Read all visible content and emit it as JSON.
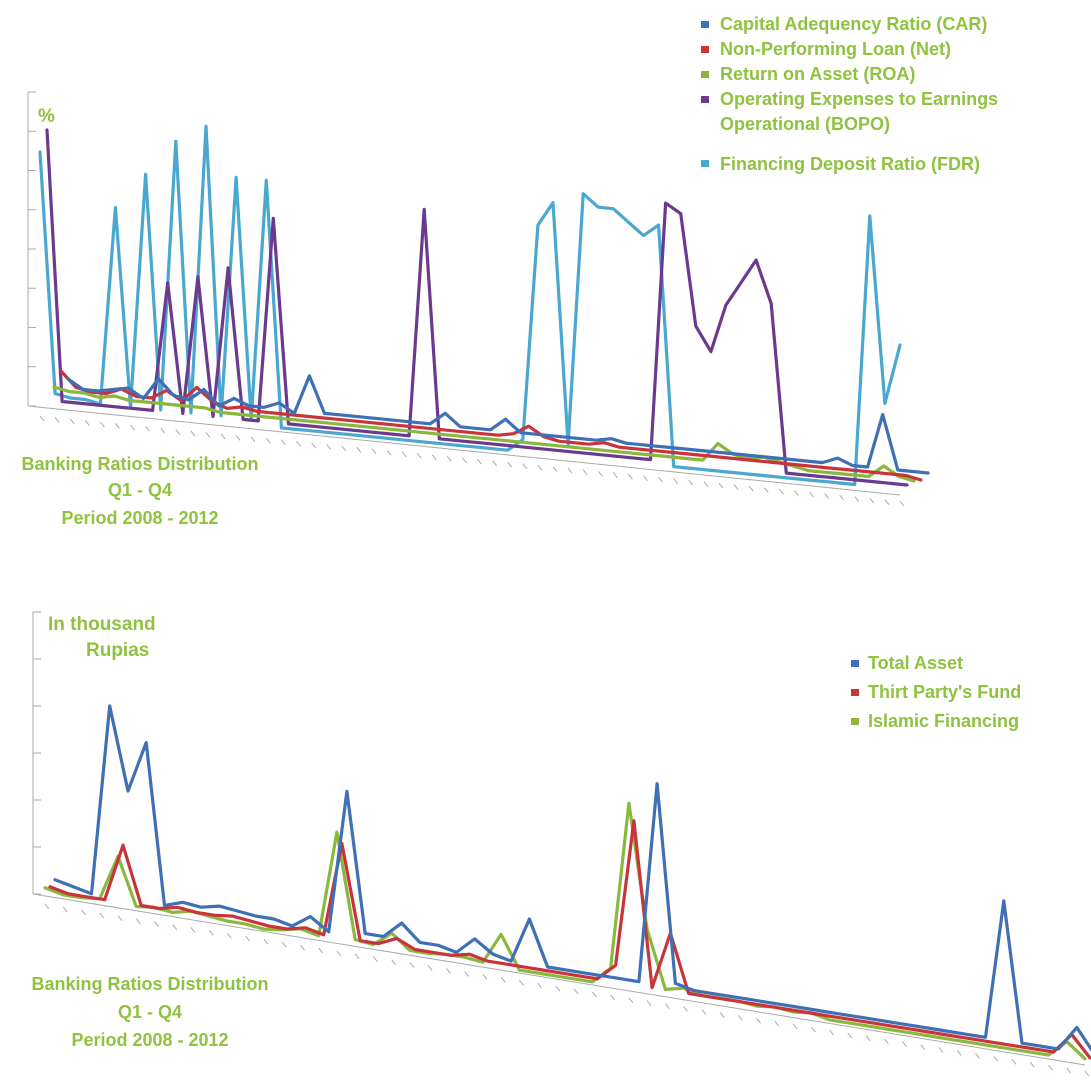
{
  "palette": {
    "label_green": "#8fc23f",
    "car_blue": "#3f6fb5",
    "npl_red": "#c8343a",
    "roa_green": "#8ab83c",
    "bopo_purple": "#6b3a8e",
    "fdr_lightblue": "#4aa7cf",
    "axis_grey": "#a9a9a9"
  },
  "chart_data": [
    {
      "type": "line",
      "unit_label": "%",
      "caption": [
        "Banking Ratios Distribution",
        "Q1 - Q4",
        "Period 2008 - 2012"
      ],
      "legend_position": "top-right",
      "axis_labels_shown": false,
      "ylim": [
        0,
        1
      ],
      "point_count": 58,
      "series": [
        {
          "name": "Capital Adequency Ratio (CAR)",
          "color": "#3f6fb5",
          "values": [
            0.05,
            0.02,
            0.02,
            0.03,
            0.04,
            0.01,
            0.08,
            0.03,
            0.02,
            0.06,
            0.01,
            0.04,
            0.02,
            0.02,
            0.04,
            0.01,
            0.14,
            0.02,
            0.02,
            0.02,
            0.02,
            0.02,
            0.02,
            0.02,
            0.02,
            0.06,
            0.02,
            0.02,
            0.02,
            0.06,
            0.02,
            0.02,
            0.02,
            0.02,
            0.02,
            0.02,
            0.03,
            0.02,
            0.02,
            0.02,
            0.02,
            0.02,
            0.02,
            0.02,
            0.02,
            0.02,
            0.02,
            0.02,
            0.02,
            0.02,
            0.02,
            0.04,
            0.02,
            0.02,
            0.2,
            0.02,
            0.02,
            0.02
          ]
        },
        {
          "name": "Non-Performing Loan (Net)",
          "color": "#c8343a",
          "values": [
            0.09,
            0.04,
            0.03,
            0.03,
            0.05,
            0.03,
            0.03,
            0.06,
            0.03,
            0.08,
            0.04,
            0.02,
            0.03,
            0.02,
            0.02,
            0.02,
            0.02,
            0.02,
            0.02,
            0.02,
            0.02,
            0.02,
            0.02,
            0.02,
            0.02,
            0.02,
            0.02,
            0.02,
            0.02,
            0.02,
            0.03,
            0.06,
            0.03,
            0.02,
            0.02,
            0.02,
            0.03,
            0.02,
            0.02,
            0.02,
            0.02,
            0.02,
            0.02,
            0.02,
            0.02,
            0.02,
            0.02,
            0.02,
            0.02,
            0.02,
            0.02,
            0.02,
            0.02,
            0.02,
            0.02,
            0.02,
            0.02,
            0.01
          ]
        },
        {
          "name": "Return on Asset (ROA)",
          "color": "#8ab83c",
          "values": [
            0.05,
            0.04,
            0.04,
            0.03,
            0.04,
            0.03,
            0.03,
            0.03,
            0.03,
            0.03,
            0.03,
            0.02,
            0.02,
            0.02,
            0.02,
            0.02,
            0.02,
            0.02,
            0.02,
            0.02,
            0.02,
            0.02,
            0.02,
            0.02,
            0.02,
            0.02,
            0.02,
            0.02,
            0.02,
            0.02,
            0.02,
            0.02,
            0.02,
            0.02,
            0.02,
            0.02,
            0.02,
            0.02,
            0.02,
            0.02,
            0.02,
            0.02,
            0.02,
            0.02,
            0.08,
            0.05,
            0.04,
            0.05,
            0.04,
            0.03,
            0.02,
            0.02,
            0.02,
            0.02,
            0.02,
            0.06,
            0.03,
            0.02
          ]
        },
        {
          "name": "Operating Expenses to Earnings Operational (BOPO)",
          "color": "#6b3a8e",
          "values": [
            0.92,
            0.02,
            0.02,
            0.02,
            0.02,
            0.02,
            0.02,
            0.02,
            0.45,
            0.02,
            0.48,
            0.02,
            0.52,
            0.02,
            0.02,
            0.7,
            0.02,
            0.02,
            0.02,
            0.02,
            0.02,
            0.02,
            0.02,
            0.02,
            0.02,
            0.78,
            0.02,
            0.02,
            0.02,
            0.02,
            0.02,
            0.02,
            0.02,
            0.02,
            0.02,
            0.02,
            0.02,
            0.02,
            0.02,
            0.02,
            0.02,
            0.88,
            0.85,
            0.48,
            0.4,
            0.56,
            0.64,
            0.72,
            0.58,
            0.02,
            0.02,
            0.02,
            0.02,
            0.02,
            0.02,
            0.02,
            0.02,
            0.02
          ]
        },
        {
          "name": "Financing Deposit Ratio (FDR)",
          "color": "#4aa7cf",
          "values": [
            0.86,
            0.06,
            0.05,
            0.05,
            0.04,
            0.7,
            0.04,
            0.82,
            0.04,
            0.94,
            0.04,
            1.0,
            0.04,
            0.84,
            0.04,
            0.84,
            0.02,
            0.02,
            0.02,
            0.02,
            0.02,
            0.02,
            0.02,
            0.02,
            0.02,
            0.02,
            0.02,
            0.02,
            0.02,
            0.02,
            0.02,
            0.02,
            0.06,
            0.78,
            0.86,
            0.06,
            0.9,
            0.86,
            0.86,
            0.82,
            0.78,
            0.82,
            0.02,
            0.02,
            0.02,
            0.02,
            0.02,
            0.02,
            0.02,
            0.02,
            0.02,
            0.02,
            0.02,
            0.02,
            0.02,
            0.92,
            0.3,
            0.5
          ]
        }
      ]
    },
    {
      "type": "line",
      "unit_label": "In thousand Rupias",
      "unit_lines": [
        "In thousand",
        "Rupias"
      ],
      "caption": [
        "Banking Ratios Distribution",
        "Q1 - Q4",
        "Period 2008 - 2012"
      ],
      "legend_position": "top-right",
      "axis_labels_shown": false,
      "ylim": [
        0,
        1
      ],
      "point_count": 58,
      "series": [
        {
          "name": "Total Asset",
          "color": "#3f6fb5",
          "values": [
            0.06,
            0.04,
            0.02,
            0.95,
            0.55,
            0.8,
            0.02,
            0.05,
            0.04,
            0.06,
            0.05,
            0.04,
            0.04,
            0.02,
            0.08,
            0.02,
            0.72,
            0.04,
            0.04,
            0.12,
            0.04,
            0.04,
            0.02,
            0.1,
            0.04,
            0.02,
            0.24,
            0.02,
            0.02,
            0.02,
            0.02,
            0.02,
            0.02,
            1.0,
            0.04,
            0.02,
            0.02,
            0.02,
            0.02,
            0.02,
            0.02,
            0.02,
            0.02,
            0.02,
            0.02,
            0.02,
            0.02,
            0.02,
            0.02,
            0.02,
            0.02,
            0.02,
            0.7,
            0.02,
            0.02,
            0.02,
            0.14,
            0.02
          ]
        },
        {
          "name": "Thirt Party's Fund",
          "color": "#c8343a",
          "values": [
            0.04,
            0.02,
            0.02,
            0.02,
            0.3,
            0.02,
            0.02,
            0.04,
            0.03,
            0.03,
            0.04,
            0.03,
            0.02,
            0.02,
            0.04,
            0.02,
            0.48,
            0.02,
            0.02,
            0.06,
            0.02,
            0.02,
            0.02,
            0.04,
            0.02,
            0.02,
            0.02,
            0.02,
            0.02,
            0.02,
            0.02,
            0.1,
            0.82,
            0.02,
            0.3,
            0.02,
            0.02,
            0.02,
            0.02,
            0.02,
            0.02,
            0.02,
            0.02,
            0.02,
            0.02,
            0.02,
            0.02,
            0.02,
            0.02,
            0.02,
            0.02,
            0.02,
            0.02,
            0.02,
            0.02,
            0.02,
            0.12,
            0.02
          ]
        },
        {
          "name": "Islamic Financing",
          "color": "#8ab83c",
          "values": [
            0.05,
            0.03,
            0.03,
            0.04,
            0.26,
            0.03,
            0.04,
            0.03,
            0.05,
            0.04,
            0.03,
            0.03,
            0.02,
            0.03,
            0.05,
            0.03,
            0.55,
            0.04,
            0.03,
            0.1,
            0.03,
            0.03,
            0.04,
            0.04,
            0.03,
            0.18,
            0.02,
            0.02,
            0.02,
            0.02,
            0.02,
            0.1,
            0.92,
            0.32,
            0.04,
            0.06,
            0.04,
            0.04,
            0.04,
            0.03,
            0.04,
            0.03,
            0.04,
            0.02,
            0.02,
            0.02,
            0.02,
            0.02,
            0.02,
            0.02,
            0.02,
            0.02,
            0.02,
            0.02,
            0.02,
            0.02,
            0.1,
            0.03
          ]
        }
      ]
    }
  ]
}
